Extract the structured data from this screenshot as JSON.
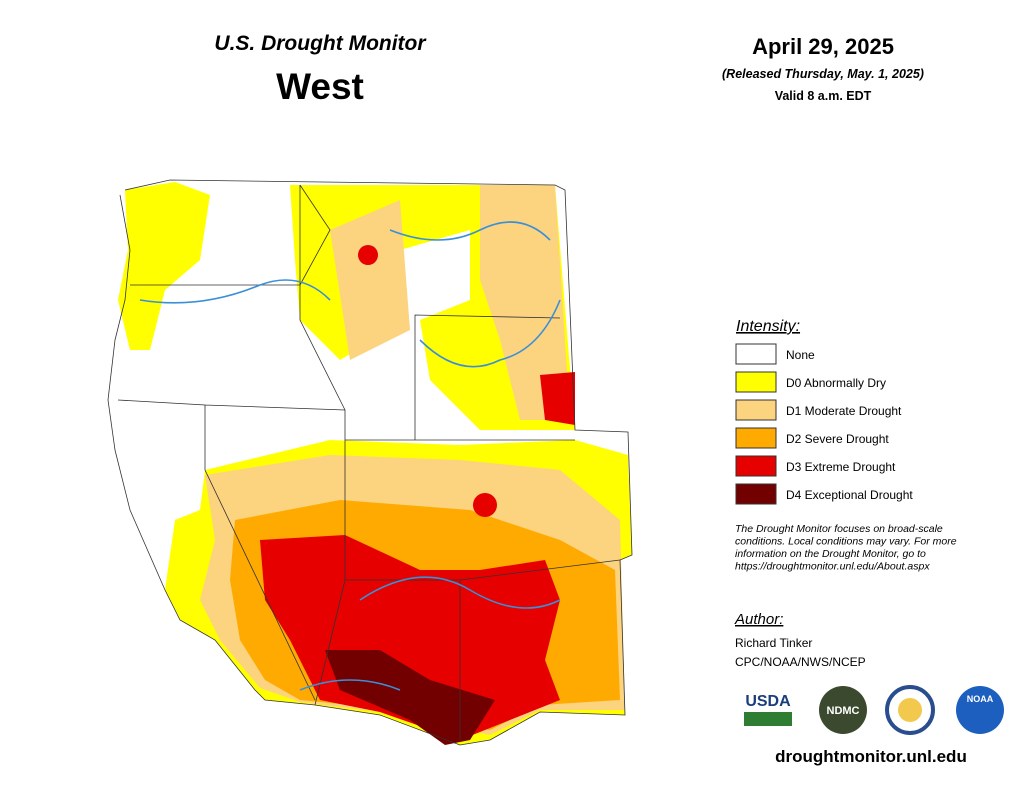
{
  "header": {
    "subtitle": "U.S. Drought Monitor",
    "title": "West"
  },
  "date": {
    "map_date": "April 29, 2025",
    "released": "(Released Thursday, May. 1, 2025)",
    "valid": "Valid 8 a.m. EDT"
  },
  "legend": {
    "title": "Intensity:",
    "items": [
      {
        "label": "None",
        "color": "#ffffff"
      },
      {
        "label": "D0 Abnormally Dry",
        "color": "#ffff00"
      },
      {
        "label": "D1 Moderate Drought",
        "color": "#fcd37f"
      },
      {
        "label": "D2 Severe Drought",
        "color": "#ffaa00"
      },
      {
        "label": "D3 Extreme Drought",
        "color": "#e60000"
      },
      {
        "label": "D4 Exceptional Drought",
        "color": "#730000"
      }
    ]
  },
  "note": {
    "lines": [
      "The Drought Monitor focuses on broad-scale",
      "conditions. Local conditions may vary. For more",
      "information on the Drought Monitor, go to",
      "https://droughtmonitor.unl.edu/About.aspx"
    ]
  },
  "author": {
    "heading": "Author:",
    "name": "Richard Tinker",
    "affiliation": "CPC/NOAA/NWS/NCEP"
  },
  "logos": [
    "USDA",
    "NDMC",
    "NOAA"
  ],
  "footer": {
    "url": "droughtmonitor.unl.edu"
  }
}
